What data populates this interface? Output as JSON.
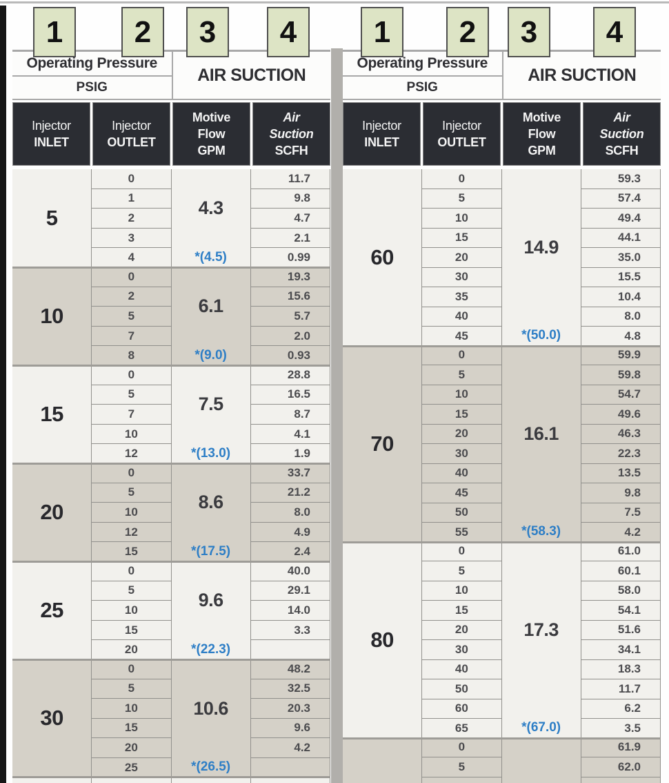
{
  "callouts": [
    "1",
    "2",
    "3",
    "4"
  ],
  "table_header": {
    "operating_pressure": "Operating Pressure",
    "psig": "PSIG",
    "air_suction": "AIR SUCTION",
    "columns": [
      {
        "lines": [
          "Injector",
          "INLET"
        ]
      },
      {
        "lines": [
          "Injector",
          "OUTLET"
        ]
      },
      {
        "lines": [
          "Motive",
          "Flow",
          "GPM"
        ]
      },
      {
        "lines": [
          "Air",
          "Suction",
          "SCFH"
        ]
      }
    ]
  },
  "colors": {
    "starred_blue": "#2d7ec6",
    "callout_green": "#dde4c5",
    "header_dark": "#2b2d33",
    "light_row": "#f2f1ed",
    "shaded_row": "#d5d1c8",
    "divider_gray": "#b1afab"
  },
  "tables": [
    {
      "id": "left",
      "groups": [
        {
          "inlet": "5",
          "motive_flow": "4.3",
          "starred": "*(4.5)",
          "shaded": false,
          "rows": [
            [
              "0",
              "11.7"
            ],
            [
              "1",
              "9.8"
            ],
            [
              "2",
              "4.7"
            ],
            [
              "3",
              "2.1"
            ],
            [
              "4",
              "0.99"
            ]
          ]
        },
        {
          "inlet": "10",
          "motive_flow": "6.1",
          "starred": "*(9.0)",
          "shaded": true,
          "rows": [
            [
              "0",
              "19.3"
            ],
            [
              "2",
              "15.6"
            ],
            [
              "5",
              "5.7"
            ],
            [
              "7",
              "2.0"
            ],
            [
              "8",
              "0.93"
            ]
          ]
        },
        {
          "inlet": "15",
          "motive_flow": "7.5",
          "starred": "*(13.0)",
          "shaded": false,
          "rows": [
            [
              "0",
              "28.8"
            ],
            [
              "5",
              "16.5"
            ],
            [
              "7",
              "8.7"
            ],
            [
              "10",
              "4.1"
            ],
            [
              "12",
              "1.9"
            ]
          ]
        },
        {
          "inlet": "20",
          "motive_flow": "8.6",
          "starred": "*(17.5)",
          "shaded": true,
          "rows": [
            [
              "0",
              "33.7"
            ],
            [
              "5",
              "21.2"
            ],
            [
              "10",
              "8.0"
            ],
            [
              "12",
              "4.9"
            ],
            [
              "15",
              "2.4"
            ]
          ]
        },
        {
          "inlet": "25",
          "motive_flow": "9.6",
          "starred": "*(22.3)",
          "shaded": false,
          "rows": [
            [
              "0",
              "40.0"
            ],
            [
              "5",
              "29.1"
            ],
            [
              "10",
              "14.0"
            ],
            [
              "15",
              "3.3"
            ],
            [
              "20",
              ""
            ]
          ]
        },
        {
          "inlet": "30",
          "motive_flow": "10.6",
          "starred": "*(26.5)",
          "shaded": true,
          "rows": [
            [
              "0",
              "48.2"
            ],
            [
              "5",
              "32.5"
            ],
            [
              "10",
              "20.3"
            ],
            [
              "15",
              "9.6"
            ],
            [
              "20",
              "4.2"
            ],
            [
              "25",
              ""
            ]
          ]
        },
        {
          "inlet": "",
          "motive_flow": "",
          "starred": "",
          "shaded": false,
          "rows": [
            [
              "",
              ""
            ]
          ]
        }
      ]
    },
    {
      "id": "right",
      "groups": [
        {
          "inlet": "60",
          "motive_flow": "14.9",
          "starred": "*(50.0)",
          "shaded": false,
          "rows": [
            [
              "0",
              "59.3"
            ],
            [
              "5",
              "57.4"
            ],
            [
              "10",
              "49.4"
            ],
            [
              "15",
              "44.1"
            ],
            [
              "20",
              "35.0"
            ],
            [
              "30",
              "15.5"
            ],
            [
              "35",
              "10.4"
            ],
            [
              "40",
              "8.0"
            ],
            [
              "45",
              "4.8"
            ]
          ]
        },
        {
          "inlet": "70",
          "motive_flow": "16.1",
          "starred": "*(58.3)",
          "shaded": true,
          "rows": [
            [
              "0",
              "59.9"
            ],
            [
              "5",
              "59.8"
            ],
            [
              "10",
              "54.7"
            ],
            [
              "15",
              "49.6"
            ],
            [
              "20",
              "46.3"
            ],
            [
              "30",
              "22.3"
            ],
            [
              "40",
              "13.5"
            ],
            [
              "45",
              "9.8"
            ],
            [
              "50",
              "7.5"
            ],
            [
              "55",
              "4.2"
            ]
          ]
        },
        {
          "inlet": "80",
          "motive_flow": "17.3",
          "starred": "*(67.0)",
          "shaded": false,
          "rows": [
            [
              "0",
              "61.0"
            ],
            [
              "5",
              "60.1"
            ],
            [
              "10",
              "58.0"
            ],
            [
              "15",
              "54.1"
            ],
            [
              "20",
              "51.6"
            ],
            [
              "30",
              "34.1"
            ],
            [
              "40",
              "18.3"
            ],
            [
              "50",
              "11.7"
            ],
            [
              "60",
              "6.2"
            ],
            [
              "65",
              "3.5"
            ]
          ]
        },
        {
          "inlet": "",
          "motive_flow": "",
          "starred": "",
          "shaded": true,
          "rows": [
            [
              "0",
              "61.9"
            ],
            [
              "5",
              "62.0"
            ],
            [
              "",
              ""
            ]
          ]
        }
      ]
    }
  ]
}
